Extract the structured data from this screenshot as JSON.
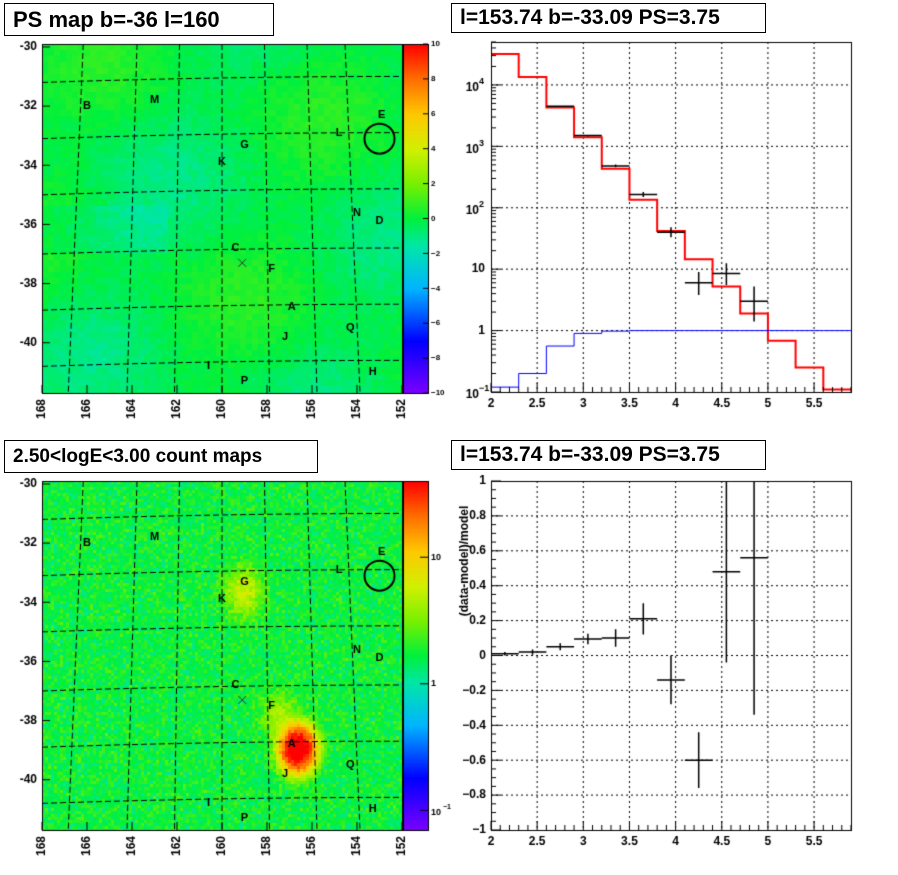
{
  "panels": {
    "ps_map_title": "PS map b=-36 l=160",
    "spectrum_title": "l=153.74 b=-33.09 PS=3.75",
    "count_map_title": "2.50<logE<3.00 count maps",
    "residual_title": "l=153.74 b=-33.09 PS=3.75"
  },
  "chart_data": [
    {
      "id": "ps-map",
      "type": "heatmap",
      "title": "PS map b=-36 l=160",
      "xlim": [
        168,
        152
      ],
      "ylim": [
        -41.7,
        -29.9
      ],
      "x_ticks": [
        168,
        166,
        164,
        162,
        160,
        158,
        156,
        154,
        152
      ],
      "y_ticks": [
        -30,
        -32,
        -34,
        -36,
        -38,
        -40
      ],
      "colorbar": {
        "min": -10,
        "max": 10,
        "ticks": [
          10,
          8,
          6,
          4,
          2,
          0,
          -2,
          -4,
          -6,
          -8,
          -10
        ],
        "scale": "linear"
      },
      "sources": [
        {
          "name": "B",
          "l": 166.0,
          "b": -32.0
        },
        {
          "name": "M",
          "l": 163.0,
          "b": -31.8
        },
        {
          "name": "E",
          "l": 152.9,
          "b": -32.3
        },
        {
          "name": "L",
          "l": 154.8,
          "b": -32.9
        },
        {
          "name": "G",
          "l": 159.0,
          "b": -33.3
        },
        {
          "name": "K",
          "l": 160.0,
          "b": -33.9
        },
        {
          "name": "N",
          "l": 154.0,
          "b": -35.6
        },
        {
          "name": "D",
          "l": 153.0,
          "b": -35.9
        },
        {
          "name": "C",
          "l": 159.4,
          "b": -36.8
        },
        {
          "name": "F",
          "l": 157.8,
          "b": -37.5
        },
        {
          "name": "A",
          "l": 156.9,
          "b": -38.8
        },
        {
          "name": "Q",
          "l": 154.3,
          "b": -39.5
        },
        {
          "name": "J",
          "l": 157.2,
          "b": -39.8
        },
        {
          "name": "I",
          "l": 160.6,
          "b": -40.8
        },
        {
          "name": "H",
          "l": 153.3,
          "b": -41.0
        },
        {
          "name": "P",
          "l": 159.0,
          "b": -41.3
        }
      ],
      "marker_cross": {
        "l": 159.1,
        "b": -37.3
      },
      "circle": {
        "l": 153.0,
        "b": -33.1
      }
    },
    {
      "id": "spectrum",
      "type": "line",
      "title": "l=153.74 b=-33.09 PS=3.75",
      "xlim": [
        2.0,
        5.9
      ],
      "ylim": [
        0.1,
        50000
      ],
      "y_scale": "log",
      "x_ticks": [
        2,
        2.5,
        3,
        3.5,
        4,
        4.5,
        5,
        5.5
      ],
      "y_tick_labels": [
        "10^-1",
        "1",
        "10",
        "10^2",
        "10^3",
        "10^4"
      ],
      "series": [
        {
          "color": "#ff0000",
          "style": "step",
          "edges": [
            2.0,
            2.3,
            2.6,
            2.9,
            3.2,
            3.5,
            3.8,
            4.1,
            4.4,
            4.7,
            5.0,
            5.3,
            5.6,
            5.9
          ],
          "values": [
            32000,
            13500,
            4300,
            1400,
            430,
            135,
            42,
            14.5,
            5.2,
            1.9,
            0.68,
            0.25,
            0.11
          ]
        },
        {
          "color": "#0000ff",
          "style": "step",
          "edges": [
            2.0,
            2.3,
            2.6,
            2.9,
            3.2,
            3.5,
            3.8,
            4.1,
            4.4,
            4.7,
            5.0,
            5.3,
            5.6,
            5.9
          ],
          "values": [
            0.12,
            0.2,
            0.56,
            0.9,
            0.98,
            1.0,
            1.0,
            1.0,
            1.0,
            1.0,
            1.0,
            1.0,
            1.0
          ]
        },
        {
          "color": "#000000",
          "style": "errorbars",
          "points": [
            {
              "x": 2.75,
              "y": 4500,
              "xerr": 0.15,
              "lo": 4400,
              "hi": 4600
            },
            {
              "x": 3.05,
              "y": 1500,
              "xerr": 0.15,
              "lo": 1450,
              "hi": 1550
            },
            {
              "x": 3.35,
              "y": 480,
              "xerr": 0.15,
              "lo": 455,
              "hi": 505
            },
            {
              "x": 3.65,
              "y": 165,
              "xerr": 0.15,
              "lo": 150,
              "hi": 180
            },
            {
              "x": 3.95,
              "y": 40,
              "xerr": 0.15,
              "lo": 33,
              "hi": 48
            },
            {
              "x": 4.25,
              "y": 6,
              "xerr": 0.15,
              "lo": 3.8,
              "hi": 9
            },
            {
              "x": 4.55,
              "y": 8.5,
              "xerr": 0.15,
              "lo": 5.5,
              "hi": 12.5
            },
            {
              "x": 4.85,
              "y": 3.0,
              "xerr": 0.15,
              "lo": 1.4,
              "hi": 5.2
            }
          ]
        }
      ]
    },
    {
      "id": "count-map",
      "type": "heatmap",
      "title": "2.50<logE<3.00 count maps",
      "xlim": [
        168,
        152
      ],
      "ylim": [
        -41.7,
        -29.9
      ],
      "x_ticks": [
        168,
        166,
        164,
        162,
        160,
        158,
        156,
        154,
        152
      ],
      "y_ticks": [
        -30,
        -32,
        -34,
        -36,
        -38,
        -40
      ],
      "colorbar": {
        "scale": "log",
        "min": 0.07,
        "max": 40,
        "tick_labels": [
          "10",
          "1",
          "10^-1"
        ],
        "tick_values": [
          10,
          1,
          0.1
        ]
      },
      "sources": [
        {
          "name": "B",
          "l": 166.0,
          "b": -32.0
        },
        {
          "name": "M",
          "l": 163.0,
          "b": -31.8
        },
        {
          "name": "E",
          "l": 152.9,
          "b": -32.3
        },
        {
          "name": "L",
          "l": 154.8,
          "b": -32.9
        },
        {
          "name": "G",
          "l": 159.0,
          "b": -33.3
        },
        {
          "name": "K",
          "l": 160.0,
          "b": -33.9
        },
        {
          "name": "N",
          "l": 154.0,
          "b": -35.6
        },
        {
          "name": "D",
          "l": 153.0,
          "b": -35.9
        },
        {
          "name": "C",
          "l": 159.4,
          "b": -36.8
        },
        {
          "name": "F",
          "l": 157.8,
          "b": -37.5
        },
        {
          "name": "A",
          "l": 156.9,
          "b": -38.8
        },
        {
          "name": "Q",
          "l": 154.3,
          "b": -39.5
        },
        {
          "name": "J",
          "l": 157.2,
          "b": -39.8
        },
        {
          "name": "I",
          "l": 160.6,
          "b": -40.8
        },
        {
          "name": "H",
          "l": 153.3,
          "b": -41.0
        },
        {
          "name": "P",
          "l": 159.0,
          "b": -41.3
        }
      ],
      "marker_cross": {
        "l": 159.1,
        "b": -37.3
      },
      "circle": {
        "l": 153.0,
        "b": -33.1
      }
    },
    {
      "id": "residual",
      "type": "scatter",
      "title": "l=153.74 b=-33.09 PS=3.75",
      "ylabel": "(data-model)/model",
      "xlim": [
        2.0,
        5.9
      ],
      "ylim": [
        -1,
        1
      ],
      "x_ticks": [
        2,
        2.5,
        3,
        3.5,
        4,
        4.5,
        5,
        5.5
      ],
      "y_ticks": [
        1,
        0.8,
        0.6,
        0.4,
        0.2,
        0,
        -0.2,
        -0.4,
        -0.6,
        -0.8,
        -1
      ],
      "points": [
        {
          "x": 2.15,
          "y": 0.01,
          "xerr": 0.15,
          "yerr": 0.01
        },
        {
          "x": 2.45,
          "y": 0.02,
          "xerr": 0.15,
          "yerr": 0.015
        },
        {
          "x": 2.75,
          "y": 0.05,
          "xerr": 0.15,
          "yerr": 0.02
        },
        {
          "x": 3.05,
          "y": 0.095,
          "xerr": 0.15,
          "yerr": 0.03
        },
        {
          "x": 3.35,
          "y": 0.1,
          "xerr": 0.15,
          "yerr": 0.05
        },
        {
          "x": 3.65,
          "y": 0.21,
          "xerr": 0.15,
          "yerr": 0.09
        },
        {
          "x": 3.95,
          "y": -0.14,
          "xerr": 0.15,
          "yerr": 0.14
        },
        {
          "x": 4.25,
          "y": -0.6,
          "xerr": 0.15,
          "yerr": 0.16
        },
        {
          "x": 4.55,
          "y": 0.48,
          "xerr": 0.15,
          "yerr": 0.52
        },
        {
          "x": 4.85,
          "y": 0.56,
          "xerr": 0.15,
          "yerr": 0.9
        }
      ]
    }
  ]
}
